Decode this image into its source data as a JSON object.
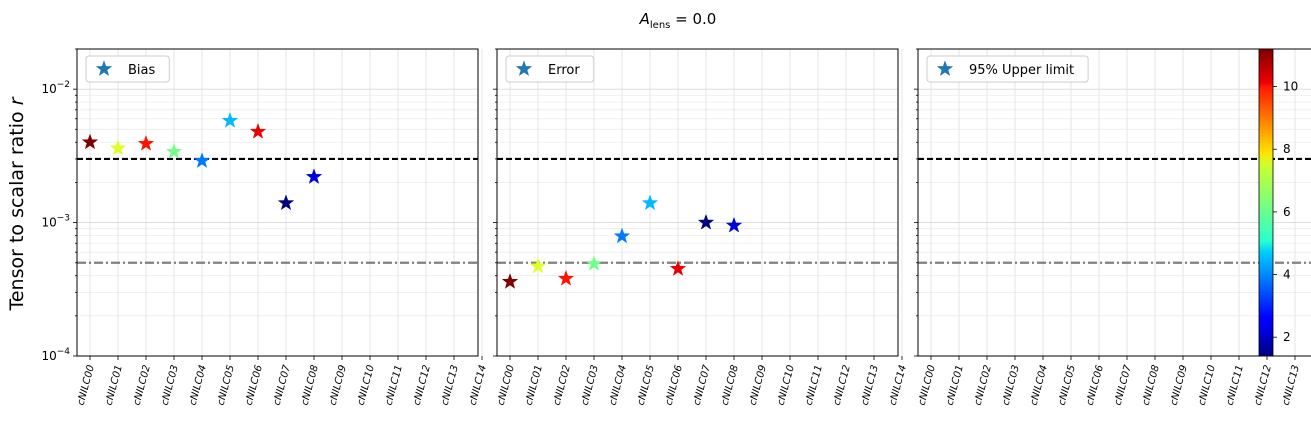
{
  "figure": {
    "suptitle_base": "A",
    "suptitle_sub": "lens",
    "suptitle_rest": " = 0.0",
    "ylabel_main": "Tensor to scalar ratio ",
    "ylabel_var": "r"
  },
  "chart_data": {
    "type": "scatter",
    "yscale": "log",
    "ylim": [
      0.0001,
      0.02
    ],
    "grid": true,
    "categories": [
      "cNILC00",
      "cNILC01",
      "cNILC02",
      "cNILC03",
      "cNILC04",
      "cNILC05",
      "cNILC06",
      "cNILC07",
      "cNILC08",
      "cNILC09",
      "cNILC10",
      "cNILC11",
      "cNILC12",
      "cNILC13",
      "cNILC14"
    ],
    "yticks": [
      {
        "value": 0.0001,
        "label_base": "10",
        "label_exp": "−4"
      },
      {
        "value": 0.001,
        "label_base": "10",
        "label_exp": "−3"
      },
      {
        "value": 0.01,
        "label_base": "10",
        "label_exp": "−2"
      }
    ],
    "reference_lines": [
      {
        "value": 0.003,
        "style": "dashed",
        "color": "#000000"
      },
      {
        "value": 0.0005,
        "style": "dashdot",
        "color": "#808080"
      }
    ],
    "colorbar": {
      "colormap": "jet",
      "range": [
        1.4,
        11.2
      ],
      "ticks": [
        2,
        4,
        6,
        8,
        10
      ]
    },
    "panels": [
      {
        "legend": "Bias",
        "legend_position": "upper-left",
        "points": [
          {
            "x": 0,
            "y": 0.004,
            "c": 11.2
          },
          {
            "x": 1,
            "y": 0.0036,
            "c": 7.2
          },
          {
            "x": 2,
            "y": 0.0039,
            "c": 9.8
          },
          {
            "x": 3,
            "y": 0.0034,
            "c": 6.2
          },
          {
            "x": 4,
            "y": 0.0029,
            "c": 3.8
          },
          {
            "x": 5,
            "y": 0.0058,
            "c": 4.4
          },
          {
            "x": 6,
            "y": 0.0048,
            "c": 10.2
          },
          {
            "x": 7,
            "y": 0.0014,
            "c": 1.4
          },
          {
            "x": 8,
            "y": 0.0022,
            "c": 2.3
          }
        ]
      },
      {
        "legend": "Error",
        "legend_position": "upper-left",
        "points": [
          {
            "x": 0,
            "y": 0.00036,
            "c": 11.2
          },
          {
            "x": 1,
            "y": 0.00047,
            "c": 7.2
          },
          {
            "x": 2,
            "y": 0.00038,
            "c": 9.8
          },
          {
            "x": 3,
            "y": 0.00049,
            "c": 6.2
          },
          {
            "x": 4,
            "y": 0.00079,
            "c": 3.8
          },
          {
            "x": 5,
            "y": 0.0014,
            "c": 4.4
          },
          {
            "x": 6,
            "y": 0.00045,
            "c": 10.2
          },
          {
            "x": 7,
            "y": 0.001,
            "c": 1.4
          },
          {
            "x": 8,
            "y": 0.00095,
            "c": 2.3
          }
        ]
      },
      {
        "legend": "95% Upper limit",
        "legend_position": "upper-left",
        "points": []
      }
    ]
  }
}
